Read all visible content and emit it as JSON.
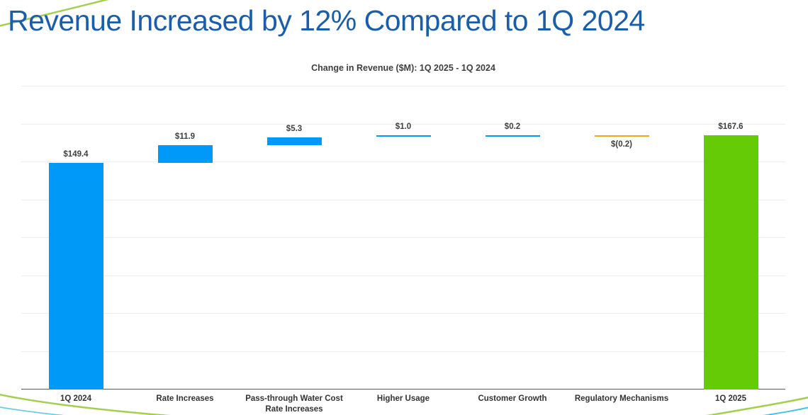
{
  "page": {
    "title": "Revenue Increased by 12% Compared to 1Q 2024"
  },
  "chart_data": {
    "type": "bar",
    "subtype": "waterfall",
    "title": "Change in Revenue ($M): 1Q 2025 - 1Q 2024",
    "categories": [
      "1Q 2024",
      "Rate Increases",
      "Pass-through Water Cost Rate Increases",
      "Higher Usage",
      "Customer Growth",
      "Regulatory Mechanisms",
      "1Q 2025"
    ],
    "tick_lines": [
      [
        "1Q 2024"
      ],
      [
        "Rate Increases"
      ],
      [
        "Pass-through Water Cost",
        "Rate Increases"
      ],
      [
        "Higher Usage"
      ],
      [
        "Customer Growth"
      ],
      [
        "Regulatory Mechanisms"
      ],
      [
        "1Q 2025"
      ]
    ],
    "values": [
      149.4,
      11.9,
      5.3,
      1.0,
      0.2,
      -0.2,
      167.6
    ],
    "labels": [
      "$149.4",
      "$11.9",
      "$5.3",
      "$1.0",
      "$0.2",
      "$(0.2)",
      "$167.6"
    ],
    "bar_types": [
      "total",
      "increase",
      "increase",
      "increase",
      "increase",
      "decrease",
      "total"
    ],
    "cumulative": [
      149.4,
      161.3,
      166.6,
      167.6,
      167.8,
      167.6,
      167.6
    ],
    "ylim": [
      0,
      200
    ],
    "gridline_step": 25,
    "grid": true,
    "y_axis_labels_visible": false,
    "legend": null,
    "colors": {
      "increase": "#0099F7",
      "decrease": "#F2A716",
      "start_total": "#0099F7",
      "end_total": "#65CB06"
    }
  },
  "style": {
    "title_color": "#1A5EA9",
    "text_color": "#3F3F3F",
    "axis_color": "#595959",
    "grid_color": "#EDEDED",
    "accent_green": "#A4CE4E",
    "accent_blue": "#4BC2E8"
  }
}
